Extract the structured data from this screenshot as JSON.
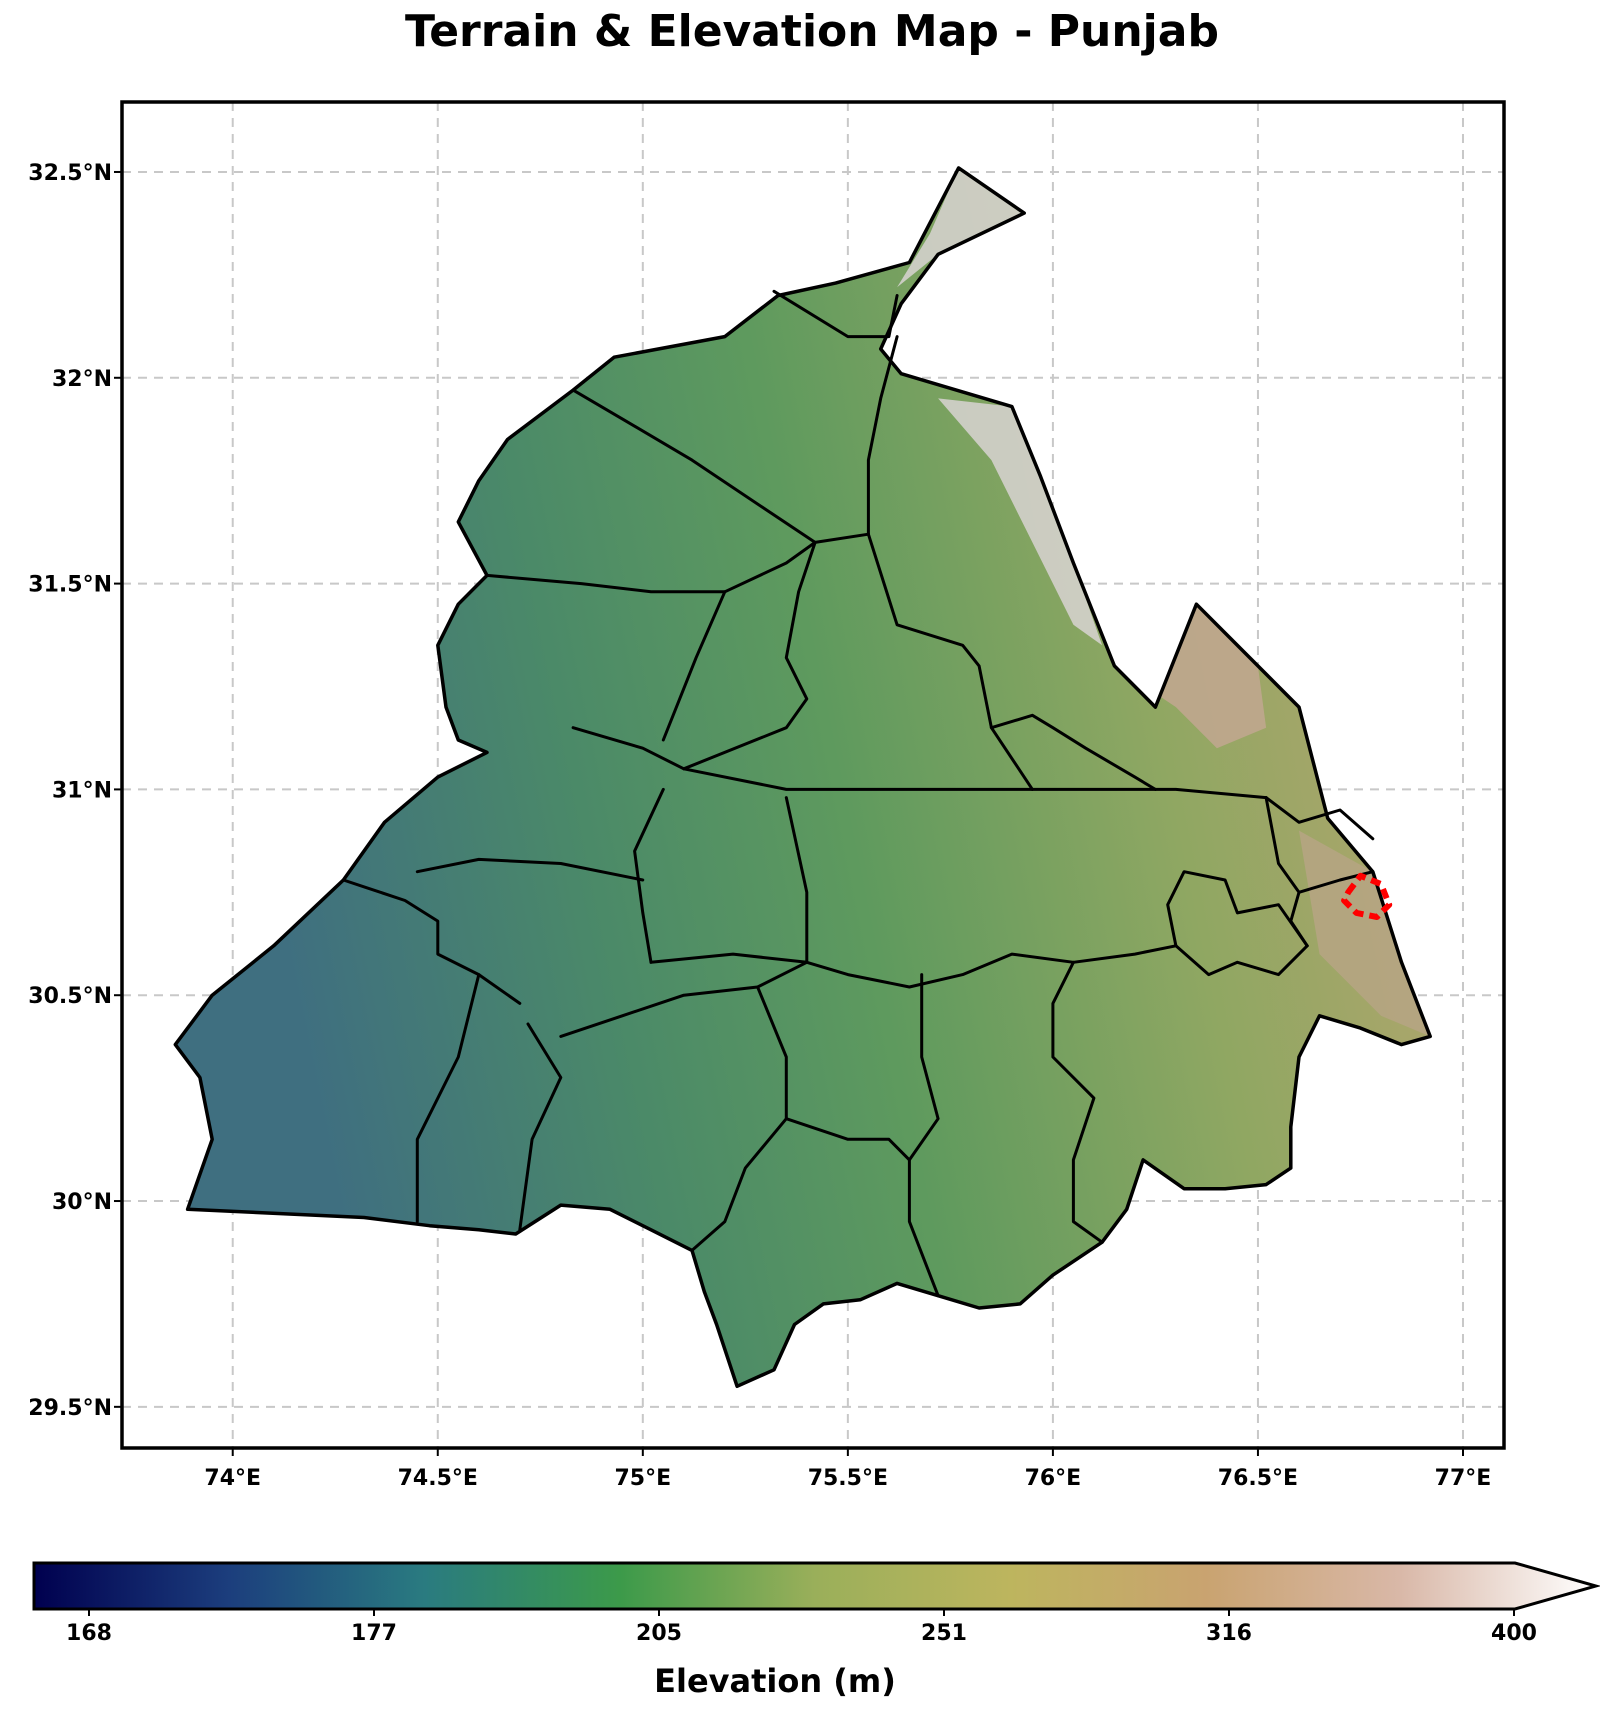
{
  "title": "Terrain & Elevation Map - Punjab",
  "map": {
    "lon_range": [
      73.73,
      77.1
    ],
    "lat_range": [
      29.4,
      32.67
    ],
    "grid": true,
    "x_ticks": [
      {
        "value": 74.0,
        "label": "74°E"
      },
      {
        "value": 74.5,
        "label": "74.5°E"
      },
      {
        "value": 75.0,
        "label": "75°E"
      },
      {
        "value": 75.5,
        "label": "75.5°E"
      },
      {
        "value": 76.0,
        "label": "76°E"
      },
      {
        "value": 76.5,
        "label": "76.5°E"
      },
      {
        "value": 77.0,
        "label": "77°E"
      }
    ],
    "y_ticks": [
      {
        "value": 29.5,
        "label": "29.5°N"
      },
      {
        "value": 30.0,
        "label": "30°N"
      },
      {
        "value": 30.5,
        "label": "30.5°N"
      },
      {
        "value": 31.0,
        "label": "31°N"
      },
      {
        "value": 31.5,
        "label": "31.5°N"
      },
      {
        "value": 32.0,
        "label": "32°N"
      },
      {
        "value": 32.5,
        "label": "32.5°N"
      }
    ],
    "outline": [
      [
        75.77,
        32.51
      ],
      [
        75.93,
        32.4
      ],
      [
        75.72,
        32.3
      ],
      [
        75.63,
        32.18
      ],
      [
        75.58,
        32.07
      ],
      [
        75.63,
        32.01
      ],
      [
        75.9,
        31.93
      ],
      [
        75.97,
        31.76
      ],
      [
        76.05,
        31.55
      ],
      [
        76.15,
        31.3
      ],
      [
        76.25,
        31.2
      ],
      [
        76.35,
        31.45
      ],
      [
        76.5,
        31.3
      ],
      [
        76.6,
        31.2
      ],
      [
        76.67,
        30.93
      ],
      [
        76.78,
        30.8
      ],
      [
        76.85,
        30.58
      ],
      [
        76.92,
        30.4
      ],
      [
        76.85,
        30.38
      ],
      [
        76.75,
        30.42
      ],
      [
        76.65,
        30.45
      ],
      [
        76.6,
        30.35
      ],
      [
        76.58,
        30.18
      ],
      [
        76.58,
        30.08
      ],
      [
        76.52,
        30.04
      ],
      [
        76.42,
        30.03
      ],
      [
        76.32,
        30.03
      ],
      [
        76.22,
        30.1
      ],
      [
        76.18,
        29.98
      ],
      [
        76.12,
        29.9
      ],
      [
        76.0,
        29.82
      ],
      [
        75.92,
        29.75
      ],
      [
        75.82,
        29.74
      ],
      [
        75.72,
        29.77
      ],
      [
        75.62,
        29.8
      ],
      [
        75.53,
        29.76
      ],
      [
        75.44,
        29.75
      ],
      [
        75.37,
        29.7
      ],
      [
        75.32,
        29.59
      ],
      [
        75.23,
        29.55
      ],
      [
        75.18,
        29.7
      ],
      [
        75.15,
        29.78
      ],
      [
        75.12,
        29.88
      ],
      [
        75.02,
        29.93
      ],
      [
        74.92,
        29.98
      ],
      [
        74.8,
        29.99
      ],
      [
        74.69,
        29.92
      ],
      [
        74.6,
        29.93
      ],
      [
        74.48,
        29.94
      ],
      [
        74.32,
        29.96
      ],
      [
        73.89,
        29.98
      ],
      [
        73.95,
        30.15
      ],
      [
        73.92,
        30.3
      ],
      [
        73.86,
        30.38
      ],
      [
        73.95,
        30.5
      ],
      [
        74.1,
        30.62
      ],
      [
        74.27,
        30.78
      ],
      [
        74.37,
        30.92
      ],
      [
        74.5,
        31.03
      ],
      [
        74.62,
        31.09
      ],
      [
        74.55,
        31.12
      ],
      [
        74.52,
        31.2
      ],
      [
        74.5,
        31.35
      ],
      [
        74.55,
        31.45
      ],
      [
        74.62,
        31.52
      ],
      [
        74.55,
        31.65
      ],
      [
        74.6,
        31.75
      ],
      [
        74.67,
        31.85
      ],
      [
        74.83,
        31.97
      ],
      [
        74.93,
        32.05
      ],
      [
        75.2,
        32.1
      ],
      [
        75.33,
        32.2
      ],
      [
        75.47,
        32.23
      ],
      [
        75.65,
        32.28
      ]
    ],
    "districts": [
      [
        [
          75.32,
          32.21
        ],
        [
          75.5,
          32.1
        ],
        [
          75.6,
          32.1
        ],
        [
          75.62,
          32.2
        ]
      ],
      [
        [
          74.83,
          31.97
        ],
        [
          74.95,
          31.9
        ],
        [
          75.12,
          31.8
        ],
        [
          75.3,
          31.68
        ],
        [
          75.42,
          31.6
        ],
        [
          75.55,
          31.62
        ]
      ],
      [
        [
          75.62,
          32.1
        ],
        [
          75.58,
          31.95
        ],
        [
          75.55,
          31.8
        ],
        [
          75.55,
          31.62
        ]
      ],
      [
        [
          74.62,
          31.52
        ],
        [
          74.85,
          31.5
        ],
        [
          75.02,
          31.48
        ],
        [
          75.2,
          31.48
        ],
        [
          75.35,
          31.55
        ],
        [
          75.42,
          31.6
        ]
      ],
      [
        [
          75.2,
          31.48
        ],
        [
          75.13,
          31.32
        ],
        [
          75.05,
          31.12
        ]
      ],
      [
        [
          75.42,
          31.6
        ],
        [
          75.38,
          31.48
        ],
        [
          75.35,
          31.32
        ],
        [
          75.4,
          31.22
        ],
        [
          75.35,
          31.15
        ],
        [
          75.1,
          31.05
        ]
      ],
      [
        [
          75.55,
          31.62
        ],
        [
          75.62,
          31.4
        ],
        [
          75.78,
          31.35
        ],
        [
          75.82,
          31.3
        ],
        [
          75.85,
          31.15
        ],
        [
          75.95,
          31.18
        ],
        [
          76.0,
          31.15
        ],
        [
          76.08,
          31.1
        ],
        [
          76.2,
          31.03
        ],
        [
          76.25,
          31.0
        ]
      ],
      [
        [
          74.83,
          31.15
        ],
        [
          75.0,
          31.1
        ],
        [
          75.1,
          31.05
        ],
        [
          75.35,
          31.0
        ],
        [
          75.55,
          31.0
        ],
        [
          75.8,
          31.0
        ],
        [
          76.0,
          31.0
        ],
        [
          76.3,
          31.0
        ],
        [
          76.52,
          30.98
        ]
      ],
      [
        [
          75.85,
          31.15
        ],
        [
          75.95,
          31.0
        ]
      ],
      [
        [
          74.27,
          30.78
        ],
        [
          74.42,
          30.73
        ],
        [
          74.5,
          30.68
        ],
        [
          74.5,
          30.6
        ],
        [
          74.6,
          30.55
        ],
        [
          74.7,
          30.48
        ]
      ],
      [
        [
          74.6,
          30.55
        ],
        [
          74.55,
          30.35
        ],
        [
          74.45,
          30.15
        ],
        [
          74.45,
          29.95
        ]
      ],
      [
        [
          74.45,
          30.8
        ],
        [
          74.6,
          30.83
        ],
        [
          74.8,
          30.82
        ],
        [
          75.0,
          30.78
        ]
      ],
      [
        [
          75.05,
          31.0
        ],
        [
          74.98,
          30.85
        ],
        [
          75.0,
          30.7
        ],
        [
          75.02,
          30.58
        ]
      ],
      [
        [
          74.72,
          30.43
        ],
        [
          74.8,
          30.3
        ],
        [
          74.73,
          30.15
        ],
        [
          74.7,
          29.93
        ]
      ],
      [
        [
          75.02,
          30.58
        ],
        [
          75.22,
          30.6
        ],
        [
          75.4,
          30.58
        ],
        [
          75.4,
          30.75
        ],
        [
          75.35,
          30.98
        ]
      ],
      [
        [
          74.8,
          30.4
        ],
        [
          74.95,
          30.45
        ],
        [
          75.1,
          30.5
        ],
        [
          75.28,
          30.52
        ],
        [
          75.4,
          30.58
        ]
      ],
      [
        [
          75.28,
          30.52
        ],
        [
          75.35,
          30.35
        ],
        [
          75.35,
          30.2
        ],
        [
          75.25,
          30.08
        ],
        [
          75.2,
          29.95
        ],
        [
          75.12,
          29.88
        ]
      ],
      [
        [
          75.4,
          30.58
        ],
        [
          75.5,
          30.55
        ],
        [
          75.65,
          30.52
        ],
        [
          75.78,
          30.55
        ],
        [
          75.9,
          30.6
        ],
        [
          76.05,
          30.58
        ],
        [
          76.2,
          30.6
        ],
        [
          76.3,
          30.62
        ]
      ],
      [
        [
          75.35,
          30.2
        ],
        [
          75.5,
          30.15
        ],
        [
          75.6,
          30.15
        ],
        [
          75.65,
          30.1
        ],
        [
          75.65,
          29.95
        ],
        [
          75.72,
          29.77
        ]
      ],
      [
        [
          75.68,
          30.55
        ],
        [
          75.68,
          30.35
        ],
        [
          75.72,
          30.2
        ],
        [
          75.65,
          30.1
        ]
      ],
      [
        [
          76.05,
          30.58
        ],
        [
          76.0,
          30.48
        ],
        [
          76.0,
          30.35
        ],
        [
          76.1,
          30.25
        ],
        [
          76.05,
          30.1
        ],
        [
          76.05,
          29.95
        ],
        [
          76.12,
          29.9
        ]
      ],
      [
        [
          76.3,
          30.62
        ],
        [
          76.38,
          30.55
        ],
        [
          76.45,
          30.58
        ],
        [
          76.55,
          30.55
        ],
        [
          76.62,
          30.62
        ]
      ],
      [
        [
          76.3,
          30.62
        ],
        [
          76.28,
          30.72
        ],
        [
          76.32,
          30.8
        ],
        [
          76.42,
          30.78
        ],
        [
          76.45,
          30.7
        ],
        [
          76.55,
          30.72
        ],
        [
          76.62,
          30.62
        ]
      ],
      [
        [
          76.52,
          30.98
        ],
        [
          76.55,
          30.82
        ],
        [
          76.6,
          30.75
        ],
        [
          76.58,
          30.68
        ],
        [
          76.62,
          30.62
        ]
      ],
      [
        [
          76.52,
          30.98
        ],
        [
          76.6,
          30.92
        ],
        [
          76.7,
          30.95
        ],
        [
          76.78,
          30.88
        ]
      ],
      [
        [
          76.6,
          30.75
        ],
        [
          76.7,
          30.78
        ],
        [
          76.78,
          30.8
        ]
      ]
    ],
    "highlight": [
      [
        76.72,
        30.75
      ],
      [
        76.75,
        30.79
      ],
      [
        76.8,
        30.77
      ],
      [
        76.82,
        30.72
      ],
      [
        76.79,
        30.69
      ],
      [
        76.74,
        30.7
      ],
      [
        76.71,
        30.73
      ]
    ],
    "highlight_color": "#ff0000",
    "elevation_zones": [
      {
        "poly": [
          [
            75.77,
            32.51
          ],
          [
            75.93,
            32.4
          ],
          [
            75.72,
            32.3
          ],
          [
            75.62,
            32.22
          ],
          [
            75.7,
            32.35
          ]
        ],
        "elev": 400
      },
      {
        "poly": [
          [
            75.72,
            31.95
          ],
          [
            75.9,
            31.93
          ],
          [
            75.97,
            31.76
          ],
          [
            76.05,
            31.55
          ],
          [
            76.12,
            31.35
          ],
          [
            76.05,
            31.4
          ],
          [
            75.95,
            31.6
          ],
          [
            75.85,
            31.8
          ]
        ],
        "elev": 380
      },
      {
        "poly": [
          [
            76.15,
            31.3
          ],
          [
            76.25,
            31.2
          ],
          [
            76.35,
            31.45
          ],
          [
            76.5,
            31.3
          ],
          [
            76.52,
            31.15
          ],
          [
            76.4,
            31.1
          ],
          [
            76.3,
            31.2
          ]
        ],
        "elev": 340
      },
      {
        "poly": [
          [
            76.6,
            30.9
          ],
          [
            76.78,
            30.8
          ],
          [
            76.85,
            30.58
          ],
          [
            76.92,
            30.4
          ],
          [
            76.8,
            30.45
          ],
          [
            76.65,
            30.6
          ]
        ],
        "elev": 330
      }
    ]
  },
  "colorbar": {
    "ticks": [
      {
        "value": 168,
        "label": "168"
      },
      {
        "value": 177,
        "label": "177"
      },
      {
        "value": 205,
        "label": "205"
      },
      {
        "value": 251,
        "label": "251"
      },
      {
        "value": 316,
        "label": "316"
      },
      {
        "value": 400,
        "label": "400"
      }
    ],
    "label": "Elevation (m)",
    "extend": "max",
    "stops": [
      "#00004f",
      "#1c3e7d",
      "#2a7b80",
      "#3c9a4a",
      "#9aaf5a",
      "#bdb55e",
      "#c9a370",
      "#d9b8a8",
      "#ffffff"
    ]
  }
}
